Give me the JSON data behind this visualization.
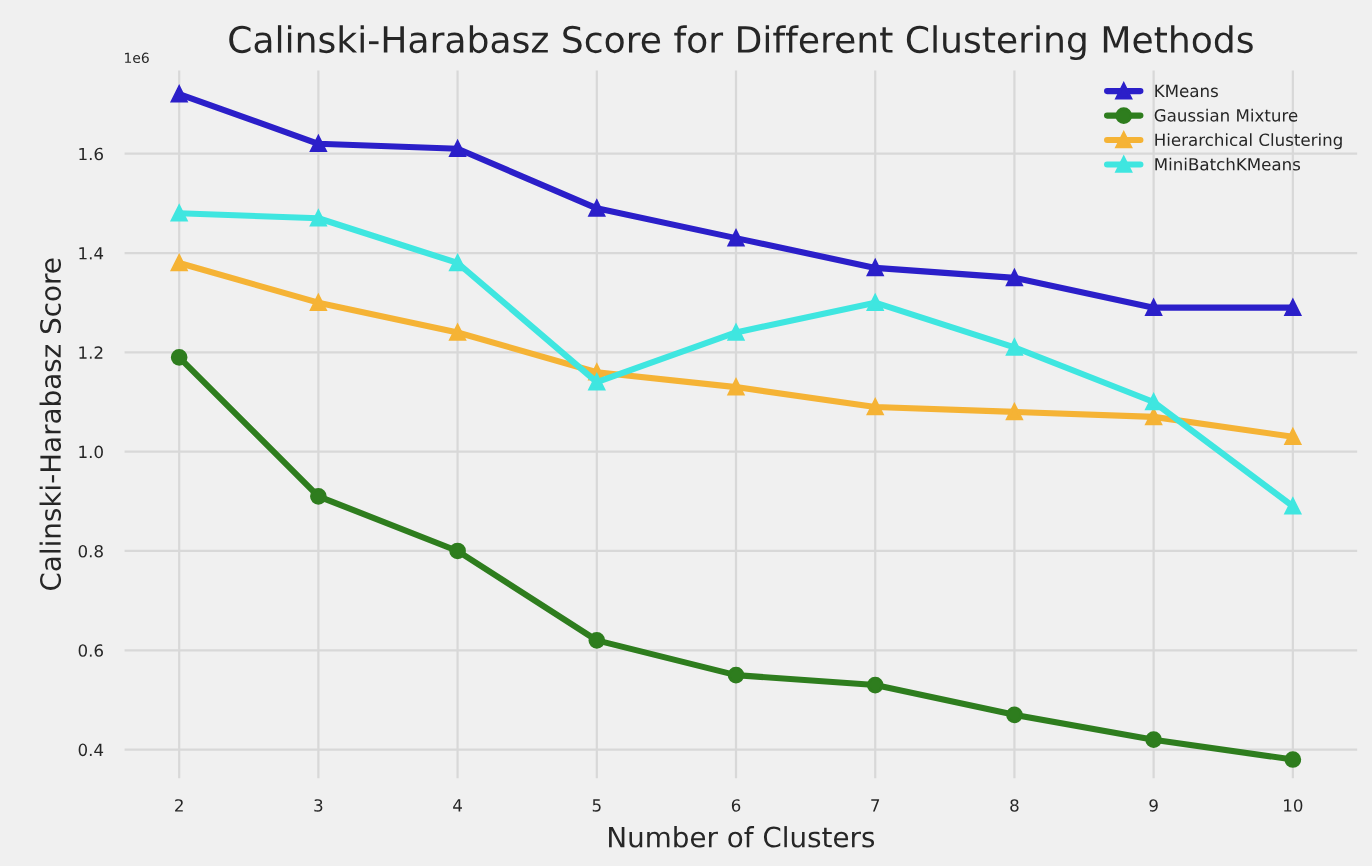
{
  "chart_data": {
    "type": "line",
    "title": "Calinski-Harabasz Score for Different Clustering Methods",
    "xlabel": "Number of Clusters",
    "ylabel": "Calinski-Harabasz Score",
    "annotations": [
      "1e6"
    ],
    "x": [
      2,
      3,
      4,
      5,
      6,
      7,
      8,
      9,
      10
    ],
    "series": [
      {
        "name": "KMeans",
        "color": "#2b1fc9",
        "marker": "triangle",
        "values": [
          1.72,
          1.62,
          1.61,
          1.49,
          1.43,
          1.37,
          1.35,
          1.29,
          1.29
        ]
      },
      {
        "name": "Gaussian Mixture",
        "color": "#2e7d1e",
        "marker": "circle",
        "values": [
          1.19,
          0.91,
          0.8,
          0.62,
          0.55,
          0.53,
          0.47,
          0.42,
          0.38
        ]
      },
      {
        "name": "Hierarchical Clustering",
        "color": "#f5b335",
        "marker": "triangle",
        "values": [
          1.38,
          1.3,
          1.24,
          1.16,
          1.13,
          1.09,
          1.08,
          1.07,
          1.03
        ]
      },
      {
        "name": "MiniBatchKMeans",
        "color": "#3fe6e0",
        "marker": "triangle",
        "values": [
          1.48,
          1.47,
          1.38,
          1.14,
          1.24,
          1.3,
          1.21,
          1.1,
          0.89
        ]
      }
    ],
    "xlim": [
      1.6,
      10.47
    ],
    "ylim": [
      0.34,
      1.77
    ],
    "xticks": [
      2,
      3,
      4,
      5,
      6,
      7,
      8,
      9,
      10
    ],
    "yticks": [
      0.4,
      0.6,
      0.8,
      {
        "value": 1,
        "label": "1.0"
      },
      1.2,
      1.4,
      1.6
    ],
    "grid": true,
    "legend": "top right",
    "line_style": "solid"
  }
}
